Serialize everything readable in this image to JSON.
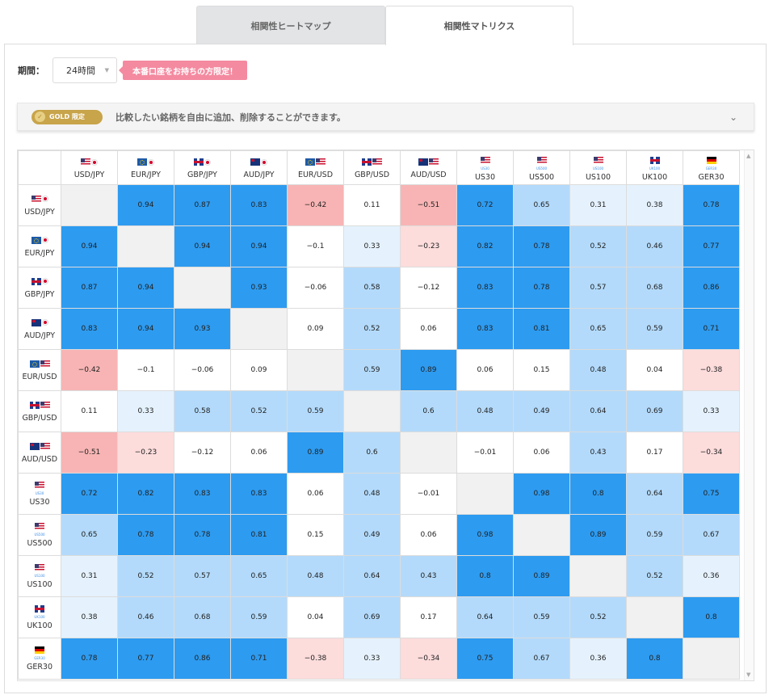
{
  "tabs": [
    {
      "label": "相関性ヒートマップ",
      "active": false
    },
    {
      "label": "相関性マトリクス",
      "active": true
    }
  ],
  "period": {
    "label": "期間：",
    "value": "24時間"
  },
  "promo": "本番口座をお持ちの方限定！",
  "gold": {
    "badge": "GOLD 限定",
    "text": "比較したい銘柄を自由に追加、削除することができます。"
  },
  "colors": {
    "strong_pos": "#2d9bf0",
    "mid_pos": "#b3dafb",
    "weak_pos": "#e5f2fd",
    "neutral": "#ffffff",
    "weak_neg": "#fddcdc",
    "strong_neg": "#f8b4b4",
    "diag": "#f1f1f1"
  },
  "symbols": [
    {
      "label": "USD/JPY",
      "flags": [
        "us",
        "jp"
      ]
    },
    {
      "label": "EUR/JPY",
      "flags": [
        "eu",
        "jp"
      ]
    },
    {
      "label": "GBP/JPY",
      "flags": [
        "gb",
        "jp"
      ]
    },
    {
      "label": "AUD/JPY",
      "flags": [
        "au",
        "jp"
      ]
    },
    {
      "label": "EUR/USD",
      "flags": [
        "eu",
        "us"
      ]
    },
    {
      "label": "GBP/USD",
      "flags": [
        "gb",
        "us"
      ]
    },
    {
      "label": "AUD/USD",
      "flags": [
        "au",
        "us"
      ]
    },
    {
      "label": "US30",
      "flags": [
        "us"
      ],
      "sub": "US30"
    },
    {
      "label": "US500",
      "flags": [
        "us"
      ],
      "sub": "US500"
    },
    {
      "label": "US100",
      "flags": [
        "us"
      ],
      "sub": "US100"
    },
    {
      "label": "UK100",
      "flags": [
        "gb"
      ],
      "sub": "UK100"
    },
    {
      "label": "GER30",
      "flags": [
        "de"
      ],
      "sub": "GER30"
    }
  ],
  "matrix": [
    [
      null,
      "0.94",
      "0.87",
      "0.83",
      "−0.42",
      "0.11",
      "−0.51",
      "0.72",
      "0.65",
      "0.31",
      "0.38",
      "0.78"
    ],
    [
      "0.94",
      null,
      "0.94",
      "0.94",
      "−0.1",
      "0.33",
      "−0.23",
      "0.82",
      "0.78",
      "0.52",
      "0.46",
      "0.77"
    ],
    [
      "0.87",
      "0.94",
      null,
      "0.93",
      "−0.06",
      "0.58",
      "−0.12",
      "0.83",
      "0.78",
      "0.57",
      "0.68",
      "0.86"
    ],
    [
      "0.83",
      "0.94",
      "0.93",
      null,
      "0.09",
      "0.52",
      "0.06",
      "0.83",
      "0.81",
      "0.65",
      "0.59",
      "0.71"
    ],
    [
      "−0.42",
      "−0.1",
      "−0.06",
      "0.09",
      null,
      "0.59",
      "0.89",
      "0.06",
      "0.15",
      "0.48",
      "0.04",
      "−0.38"
    ],
    [
      "0.11",
      "0.33",
      "0.58",
      "0.52",
      "0.59",
      null,
      "0.6",
      "0.48",
      "0.49",
      "0.64",
      "0.69",
      "0.33"
    ],
    [
      "−0.51",
      "−0.23",
      "−0.12",
      "0.06",
      "0.89",
      "0.6",
      null,
      "−0.01",
      "0.06",
      "0.43",
      "0.17",
      "−0.34"
    ],
    [
      "0.72",
      "0.82",
      "0.83",
      "0.83",
      "0.06",
      "0.48",
      "−0.01",
      null,
      "0.98",
      "0.8",
      "0.64",
      "0.75"
    ],
    [
      "0.65",
      "0.78",
      "0.78",
      "0.81",
      "0.15",
      "0.49",
      "0.06",
      "0.98",
      null,
      "0.89",
      "0.59",
      "0.67"
    ],
    [
      "0.31",
      "0.52",
      "0.57",
      "0.65",
      "0.48",
      "0.64",
      "0.43",
      "0.8",
      "0.89",
      null,
      "0.52",
      "0.36"
    ],
    [
      "0.38",
      "0.46",
      "0.68",
      "0.59",
      "0.04",
      "0.69",
      "0.17",
      "0.64",
      "0.59",
      "0.52",
      null,
      "0.8"
    ],
    [
      "0.78",
      "0.77",
      "0.86",
      "0.71",
      "−0.38",
      "0.33",
      "−0.34",
      "0.75",
      "0.67",
      "0.36",
      "0.8",
      null
    ]
  ],
  "cell_levels": [
    [
      "diag",
      "strong_pos",
      "strong_pos",
      "strong_pos",
      "strong_neg",
      "neutral",
      "strong_neg",
      "strong_pos",
      "mid_pos",
      "weak_pos",
      "weak_pos",
      "strong_pos"
    ],
    [
      "strong_pos",
      "diag",
      "strong_pos",
      "strong_pos",
      "neutral",
      "weak_pos",
      "weak_neg",
      "strong_pos",
      "strong_pos",
      "mid_pos",
      "mid_pos",
      "strong_pos"
    ],
    [
      "strong_pos",
      "strong_pos",
      "diag",
      "strong_pos",
      "neutral",
      "mid_pos",
      "neutral",
      "strong_pos",
      "strong_pos",
      "mid_pos",
      "mid_pos",
      "strong_pos"
    ],
    [
      "strong_pos",
      "strong_pos",
      "strong_pos",
      "diag",
      "neutral",
      "mid_pos",
      "neutral",
      "strong_pos",
      "strong_pos",
      "mid_pos",
      "mid_pos",
      "strong_pos"
    ],
    [
      "strong_neg",
      "neutral",
      "neutral",
      "neutral",
      "diag",
      "mid_pos",
      "strong_pos",
      "neutral",
      "neutral",
      "mid_pos",
      "neutral",
      "weak_neg"
    ],
    [
      "neutral",
      "weak_pos",
      "mid_pos",
      "mid_pos",
      "mid_pos",
      "diag",
      "mid_pos",
      "mid_pos",
      "mid_pos",
      "mid_pos",
      "mid_pos",
      "weak_pos"
    ],
    [
      "strong_neg",
      "weak_neg",
      "neutral",
      "neutral",
      "strong_pos",
      "mid_pos",
      "diag",
      "neutral",
      "neutral",
      "mid_pos",
      "neutral",
      "weak_neg"
    ],
    [
      "strong_pos",
      "strong_pos",
      "strong_pos",
      "strong_pos",
      "neutral",
      "mid_pos",
      "neutral",
      "diag",
      "strong_pos",
      "strong_pos",
      "mid_pos",
      "strong_pos"
    ],
    [
      "mid_pos",
      "strong_pos",
      "strong_pos",
      "strong_pos",
      "neutral",
      "mid_pos",
      "neutral",
      "strong_pos",
      "diag",
      "strong_pos",
      "mid_pos",
      "mid_pos"
    ],
    [
      "weak_pos",
      "mid_pos",
      "mid_pos",
      "mid_pos",
      "mid_pos",
      "mid_pos",
      "mid_pos",
      "strong_pos",
      "strong_pos",
      "diag",
      "mid_pos",
      "weak_pos"
    ],
    [
      "weak_pos",
      "mid_pos",
      "mid_pos",
      "mid_pos",
      "neutral",
      "mid_pos",
      "neutral",
      "mid_pos",
      "mid_pos",
      "mid_pos",
      "diag",
      "strong_pos"
    ],
    [
      "strong_pos",
      "strong_pos",
      "strong_pos",
      "strong_pos",
      "weak_neg",
      "weak_pos",
      "weak_neg",
      "strong_pos",
      "mid_pos",
      "weak_pos",
      "strong_pos",
      "diag"
    ]
  ]
}
